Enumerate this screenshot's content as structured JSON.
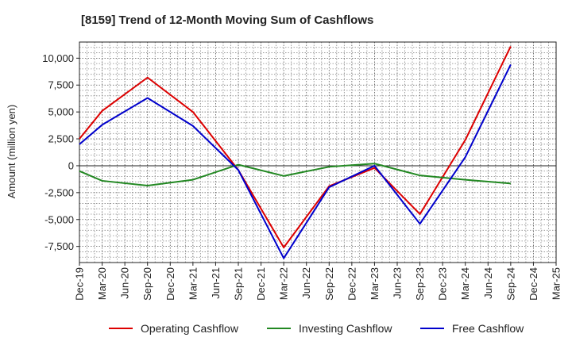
{
  "chart_data": {
    "type": "line",
    "title": "[8159]  Trend of 12-Month Moving Sum of Cashflows",
    "xlabel": "",
    "ylabel": "Amount (million yen)",
    "ylim": [
      -9000,
      11500
    ],
    "y_ticks": [
      10000,
      7500,
      5000,
      2500,
      0,
      -2500,
      -5000,
      -7500
    ],
    "y_tick_labels": [
      "10,000",
      "7,500",
      "5,000",
      "2,500",
      "0",
      "-2,500",
      "-5,000",
      "-7,500"
    ],
    "categories": [
      "Dec-19",
      "Mar-20",
      "Jun-20",
      "Sep-20",
      "Dec-20",
      "Mar-21",
      "Jun-21",
      "Sep-21",
      "Dec-21",
      "Mar-22",
      "Jun-22",
      "Sep-22",
      "Dec-22",
      "Mar-23",
      "Jun-23",
      "Sep-23",
      "Dec-23",
      "Mar-24",
      "Jun-24",
      "Sep-24",
      "Dec-24",
      "Mar-25"
    ],
    "grid": true,
    "legend_position": "bottom",
    "series": [
      {
        "name": "Operating Cashflow",
        "color": "#dd0000",
        "values": [
          2500,
          5100,
          null,
          8200,
          null,
          5000,
          null,
          -400,
          null,
          -7600,
          null,
          -1900,
          null,
          -200,
          null,
          -4500,
          null,
          2400,
          null,
          11100,
          null,
          null
        ]
      },
      {
        "name": "Investing Cashflow",
        "color": "#228822",
        "values": [
          -500,
          -1400,
          null,
          -1850,
          null,
          -1300,
          null,
          100,
          null,
          -950,
          null,
          -100,
          null,
          200,
          null,
          -900,
          null,
          -1300,
          null,
          -1650,
          null,
          null
        ]
      },
      {
        "name": "Free Cashflow",
        "color": "#0000cc",
        "values": [
          2000,
          3800,
          null,
          6300,
          null,
          3700,
          null,
          -400,
          null,
          -8600,
          null,
          -2000,
          null,
          0,
          null,
          -5400,
          null,
          800,
          null,
          9400,
          null,
          null
        ]
      }
    ]
  }
}
